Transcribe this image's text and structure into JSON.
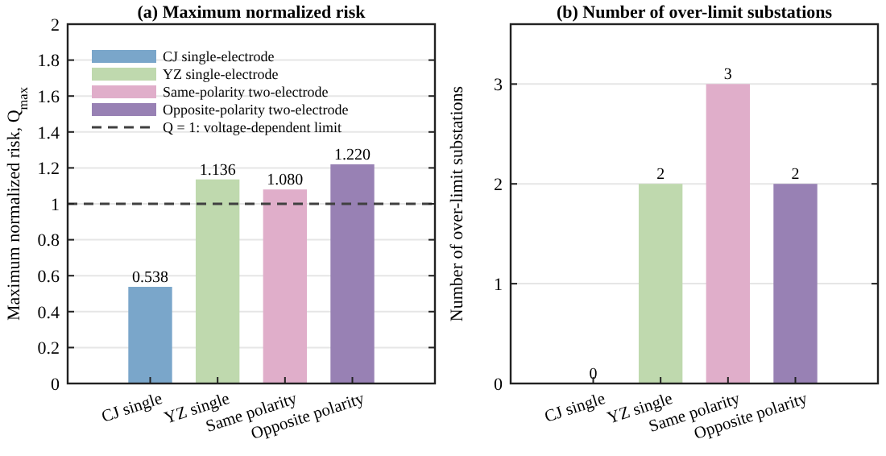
{
  "chart_data": [
    {
      "type": "bar",
      "title": "(a) Maximum normalized risk",
      "ylabel": "Maximum normalized risk, Q$_{max}$",
      "categories": [
        "CJ single",
        "YZ single",
        "Same polarity",
        "Opposite polarity"
      ],
      "series": [
        {
          "name": "CJ single-electrode",
          "color": "#7aa6ca",
          "values": [
            0.538,
            null,
            null,
            null
          ],
          "value_labels": [
            "0.538",
            null,
            null,
            null
          ]
        },
        {
          "name": "YZ single-electrode",
          "color": "#bfd9ae",
          "values": [
            null,
            1.136,
            null,
            null
          ],
          "value_labels": [
            null,
            "1.136",
            null,
            null
          ]
        },
        {
          "name": "Same-polarity two-electrode",
          "color": "#e0aeca",
          "values": [
            null,
            null,
            1.08,
            null
          ],
          "value_labels": [
            null,
            null,
            "1.080",
            null
          ]
        },
        {
          "name": "Opposite-polarity two-electrode",
          "color": "#9881b4",
          "values": [
            null,
            null,
            null,
            1.22
          ],
          "value_labels": [
            null,
            null,
            null,
            "1.220"
          ]
        }
      ],
      "ref_lines": [
        {
          "axis": "y",
          "value": 1,
          "label": "Q = 1: voltage-dependent limit",
          "color": "#404040",
          "line_style": "dashed"
        }
      ],
      "ylim": [
        0,
        2
      ],
      "yticks": [
        0,
        0.2,
        0.4,
        0.6,
        0.8,
        1,
        1.2,
        1.4,
        1.6,
        1.8,
        2
      ],
      "grid": "y",
      "legend": "top left"
    },
    {
      "type": "bar",
      "title": "(b) Number of over-limit substations",
      "ylabel": "Number of over-limit substations",
      "categories": [
        "CJ single",
        "YZ single",
        "Same polarity",
        "Opposite polarity"
      ],
      "values": [
        0,
        2,
        3,
        2
      ],
      "colors": [
        "#7aa6ca",
        "#bfd9ae",
        "#e0aeca",
        "#9881b4"
      ],
      "data_labels": true,
      "ylim": [
        0,
        3.6
      ],
      "yticks": [
        0,
        1,
        2,
        3
      ],
      "grid": "y"
    }
  ]
}
